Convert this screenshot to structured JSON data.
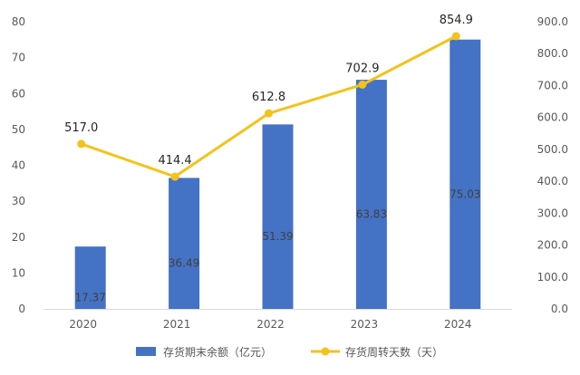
{
  "chart_data": {
    "type": "bar",
    "categories": [
      "2020",
      "2021",
      "2022",
      "2023",
      "2024"
    ],
    "series": [
      {
        "name": "存货期末余额（亿元）",
        "type": "bar",
        "axis": "left",
        "values": [
          17.37,
          36.49,
          51.39,
          63.83,
          75.03
        ],
        "labels": [
          "17.37",
          "36.49",
          "51.39",
          "63.83",
          "75.03"
        ],
        "color": "#4472C4"
      },
      {
        "name": "存货周转天数（天）",
        "type": "line",
        "axis": "right",
        "values": [
          517.0,
          414.4,
          612.8,
          702.9,
          854.9
        ],
        "labels": [
          "517.0",
          "414.4",
          "612.8",
          "702.9",
          "854.9"
        ],
        "color": "#F4C21B"
      }
    ],
    "y_left": {
      "min": 0,
      "max": 80,
      "ticks": [
        0,
        10,
        20,
        30,
        40,
        50,
        60,
        70,
        80
      ],
      "tick_labels": [
        "0",
        "10",
        "20",
        "30",
        "40",
        "50",
        "60",
        "70",
        "80"
      ]
    },
    "y_right": {
      "min": 0,
      "max": 900,
      "ticks": [
        0,
        100,
        200,
        300,
        400,
        500,
        600,
        700,
        800,
        900
      ],
      "tick_labels": [
        "0.0",
        "100.0",
        "200.0",
        "300.0",
        "400.0",
        "500.0",
        "600.0",
        "700.0",
        "800.0",
        "900.0"
      ]
    },
    "title": "",
    "xlabel": "",
    "ylabel": "",
    "grid": false,
    "legend": "bottom"
  }
}
